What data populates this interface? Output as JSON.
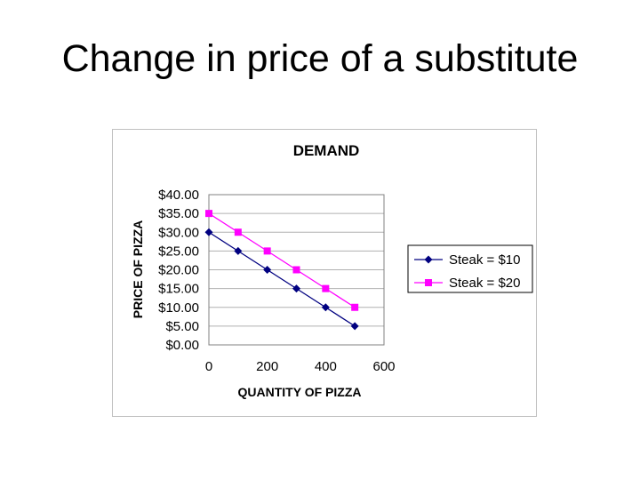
{
  "slide": {
    "title": "Change in price of a substitute"
  },
  "chart_data": {
    "type": "line",
    "title": "DEMAND",
    "xlabel": "QUANTITY OF PIZZA",
    "ylabel": "PRICE OF PIZZA",
    "xlim": [
      0,
      600
    ],
    "ylim": [
      0,
      40
    ],
    "x_ticks": [
      "0",
      "200",
      "400",
      "600"
    ],
    "y_ticks": [
      "$0.00",
      "$5.00",
      "$10.00",
      "$15.00",
      "$20.00",
      "$25.00",
      "$30.00",
      "$35.00",
      "$40.00"
    ],
    "grid": true,
    "legend_position": "right",
    "series": [
      {
        "name": "Steak = $10",
        "color": "#000080",
        "marker": "diamond",
        "x": [
          0,
          100,
          200,
          300,
          400,
          500
        ],
        "y": [
          30,
          25,
          20,
          15,
          10,
          5
        ]
      },
      {
        "name": "Steak = $20",
        "color": "#ff00ff",
        "marker": "square",
        "x": [
          0,
          100,
          200,
          300,
          400,
          500
        ],
        "y": [
          35,
          30,
          25,
          20,
          15,
          10
        ]
      }
    ]
  }
}
